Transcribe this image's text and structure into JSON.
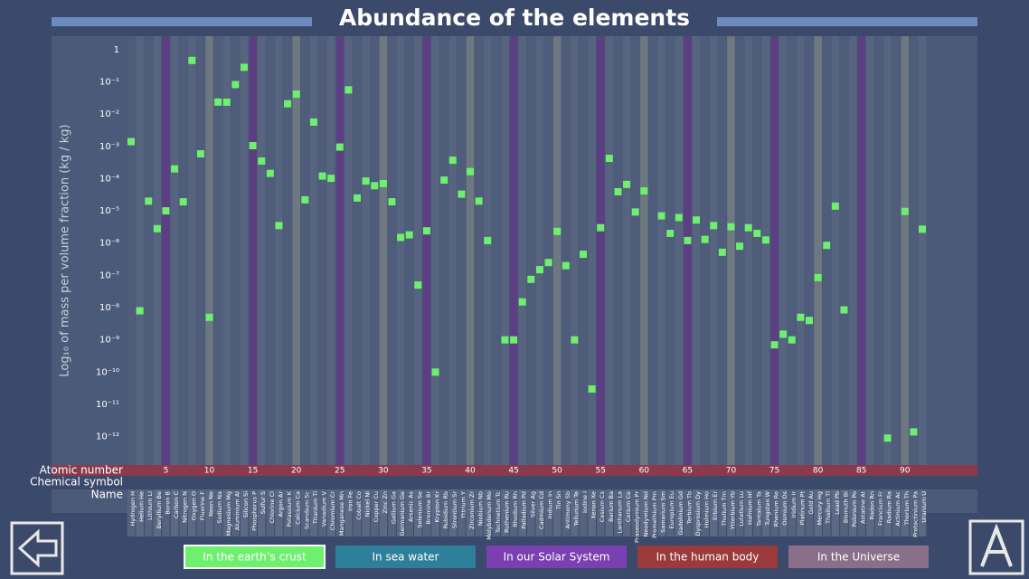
{
  "chart_data": {
    "type": "scatter",
    "title": "Abundance of the elements",
    "y_label": "Log₁₀ of mass per volume fraction (kg / kg)",
    "log_scale": true,
    "ylim": [
      1.5e-13,
      2.6
    ],
    "yticks": [
      1,
      {
        "value": 0.1,
        "label": "10⁻¹"
      },
      {
        "value": 0.01,
        "label": "10⁻²"
      },
      {
        "value": 0.001,
        "label": "10⁻³"
      },
      {
        "value": 0.0001,
        "label": "10⁻⁴"
      },
      {
        "value": 1e-05,
        "label": "10⁻⁵"
      },
      {
        "value": 1e-06,
        "label": "10⁻⁶"
      },
      {
        "value": 1e-07,
        "label": "10⁻⁷"
      },
      {
        "value": 1e-08,
        "label": "10⁻⁸"
      },
      {
        "value": 1e-09,
        "label": "10⁻⁹"
      },
      {
        "value": 1e-10,
        "label": "10⁻¹⁰"
      },
      {
        "value": 1e-11,
        "label": "10⁻¹¹"
      },
      {
        "value": 1e-12,
        "label": "10⁻¹²"
      }
    ],
    "row_labels": [
      "Atomic number",
      "Chemical symbol",
      "Name"
    ],
    "atomic_number_labels": [
      5,
      10,
      15,
      20,
      25,
      30,
      35,
      40,
      45,
      50,
      55,
      60,
      65,
      70,
      75,
      80,
      85,
      90
    ],
    "categories": [
      "Hydrogen",
      "Helium",
      "Lithium",
      "Beryllium",
      "Boron",
      "Carbon",
      "Nitrogen",
      "Oxygen",
      "Fluorine",
      "Neon",
      "Sodium",
      "Magnesium",
      "Aluminium",
      "Silicon",
      "Phosphorus",
      "Sulfur",
      "Chlorine",
      "Argon",
      "Potassium",
      "Calcium",
      "Scandium",
      "Titanium",
      "Vanadium",
      "Chromium",
      "Manganese",
      "Iron",
      "Cobalt",
      "Nickel",
      "Copper",
      "Zinc",
      "Gallium",
      "Germanium",
      "Arsenic",
      "Selenium",
      "Bromine",
      "Krypton",
      "Rubidium",
      "Strontium",
      "Yttrium",
      "Zirconium",
      "Niobium",
      "Molybdenum",
      "Technetium",
      "Ruthenium",
      "Rhodium",
      "Palladium",
      "Silver",
      "Cadmium",
      "Indium",
      "Tin",
      "Antimony",
      "Tellurium",
      "Iodine",
      "Xenon",
      "Cesium",
      "Barium",
      "Lanthanum",
      "Cerium",
      "Praseodymium",
      "Neodymium",
      "Promethium",
      "Samarium",
      "Europium",
      "Gadolinium",
      "Terbium",
      "Dysprosium",
      "Holmium",
      "Erbium",
      "Thulium",
      "Ytterbium",
      "Lutetium",
      "Hafnium",
      "Tantalum",
      "Tungsten",
      "Rhenium",
      "Osmium",
      "Iridium",
      "Platinum",
      "Gold",
      "Mercury",
      "Thallium",
      "Lead",
      "Bismuth",
      "Polonium",
      "Astatine",
      "Radon",
      "Francium",
      "Radium",
      "Actinium",
      "Thorium",
      "Protactinium",
      "Uranium"
    ],
    "symbols": [
      "H",
      "He",
      "Li",
      "Be",
      "B",
      "C",
      "N",
      "O",
      "F",
      "Ne",
      "Na",
      "Mg",
      "Al",
      "Si",
      "P",
      "S",
      "Cl",
      "Ar",
      "K",
      "Ca",
      "Sc",
      "Ti",
      "V",
      "Cr",
      "Mn",
      "Fe",
      "Co",
      "Ni",
      "Cu",
      "Zn",
      "Ga",
      "Ge",
      "As",
      "Se",
      "Br",
      "Kr",
      "Rb",
      "Sr",
      "Y",
      "Zr",
      "Nb",
      "Mo",
      "Tc",
      "Ru",
      "Rh",
      "Pd",
      "Ag",
      "Cd",
      "In",
      "Sn",
      "Sb",
      "Te",
      "I",
      "Xe",
      "Cs",
      "Ba",
      "La",
      "Ce",
      "Pr",
      "Nd",
      "Pm",
      "Sm",
      "Eu",
      "Gd",
      "Tb",
      "Dy",
      "Ho",
      "Er",
      "Tm",
      "Yb",
      "Lu",
      "Hf",
      "Ta",
      "W",
      "Re",
      "Os",
      "Ir",
      "Pt",
      "Au",
      "Hg",
      "Tl",
      "Pb",
      "Bi",
      "Po",
      "At",
      "Rn",
      "Fr",
      "Ra",
      "Ac",
      "Th",
      "Pa",
      "U"
    ],
    "series": [
      {
        "name": "In the earth’s crust",
        "color": "#6ef06e",
        "values": [
          0.0014,
          8e-09,
          2e-05,
          2.8e-06,
          1e-05,
          0.0002,
          1.9e-05,
          0.46,
          0.000585,
          5e-09,
          0.0236,
          0.0233,
          0.082,
          0.282,
          0.00105,
          0.00035,
          0.000145,
          3.5e-06,
          0.0209,
          0.0415,
          2.2e-05,
          0.00565,
          0.00012,
          0.000102,
          0.00095,
          0.0563,
          2.5e-05,
          8.4e-05,
          6e-05,
          7e-05,
          1.9e-05,
          1.5e-06,
          1.8e-06,
          5e-08,
          2.4e-06,
          1e-10,
          9e-05,
          0.00037,
          3.3e-05,
          0.000165,
          2e-05,
          1.2e-06,
          null,
          1e-09,
          1e-09,
          1.5e-08,
          7.5e-08,
          1.5e-07,
          2.5e-07,
          2.3e-06,
          2e-07,
          1e-09,
          4.5e-07,
          3e-11,
          3e-06,
          0.000425,
          3.9e-05,
          6.6e-05,
          9.2e-06,
          4.15e-05,
          null,
          7e-06,
          2e-06,
          6.2e-06,
          1.2e-06,
          5.2e-06,
          1.3e-06,
          3.5e-06,
          5.2e-07,
          3.2e-06,
          8e-07,
          3e-06,
          2e-06,
          1.25e-06,
          7e-10,
          1.5e-09,
          1e-09,
          5e-09,
          4e-09,
          8.5e-08,
          8.5e-07,
          1.4e-05,
          8.5e-09,
          null,
          null,
          null,
          null,
          9e-13,
          null,
          9.6e-06,
          1.4e-12,
          2.7e-06
        ]
      }
    ],
    "other_views": [
      {
        "name": "In sea water",
        "color": "#2e7f9a"
      },
      {
        "name": "In our Solar System",
        "color": "#7a3fb0"
      },
      {
        "name": "In the human body",
        "color": "#9a3a3a"
      },
      {
        "name": "In the Universe",
        "color": "#8a6f8a"
      }
    ]
  }
}
